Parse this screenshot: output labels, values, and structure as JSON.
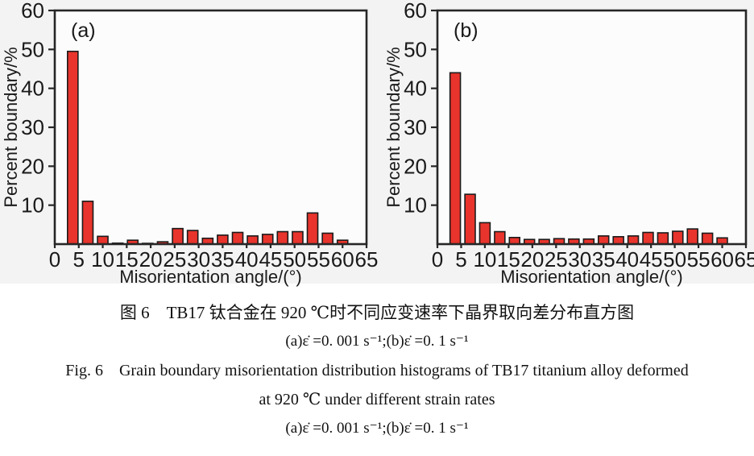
{
  "caption": {
    "zh_title": "图 6　TB17 钛合金在 920 ℃时不同应变速率下晶界取向差分布直方图",
    "zh_sub": "(a)ε̇ =0. 001 s⁻¹;(b)ε̇ =0. 1 s⁻¹",
    "en_line1": "Fig. 6　Grain boundary misorientation distribution histograms of TB17 titanium alloy deformed",
    "en_line2": "at 920 ℃ under different strain rates",
    "en_sub": "(a)ε̇ =0. 001 s⁻¹;(b)ε̇ =0. 1 s⁻¹"
  },
  "chart_data": [
    {
      "type": "bar",
      "panel_label": "(a)",
      "xlabel": "Misorientation angle/(°)",
      "ylabel": "Percent boundary/%",
      "xlim": [
        0,
        65
      ],
      "ylim": [
        0,
        60
      ],
      "x_ticks": [
        0,
        5,
        10,
        15,
        20,
        25,
        30,
        35,
        40,
        45,
        50,
        55,
        60,
        65
      ],
      "y_ticks": [
        10,
        20,
        30,
        40,
        50,
        60
      ],
      "grid": false,
      "legend": "none",
      "bin_width": 3.125,
      "x": [
        3.75,
        6.88,
        10.0,
        13.13,
        16.25,
        19.38,
        22.5,
        25.63,
        28.75,
        31.88,
        35.0,
        38.13,
        41.25,
        44.38,
        47.5,
        50.63,
        53.75,
        56.88,
        60.0
      ],
      "values": [
        49.5,
        11.0,
        2.0,
        0.25,
        1.0,
        0.2,
        0.6,
        4.0,
        3.5,
        1.5,
        2.3,
        3.0,
        2.1,
        2.5,
        3.2,
        3.2,
        8.0,
        2.8,
        1.0
      ],
      "bar_color": "#e8342c",
      "bar_edge_color": "#1b1b1b"
    },
    {
      "type": "bar",
      "panel_label": "(b)",
      "xlabel": "Misorientation angle/(°)",
      "ylabel": "Percent boundary/%",
      "xlim": [
        0,
        65
      ],
      "ylim": [
        0,
        60
      ],
      "x_ticks": [
        0,
        5,
        10,
        15,
        20,
        25,
        30,
        35,
        40,
        45,
        50,
        55,
        60,
        65
      ],
      "y_ticks": [
        10,
        20,
        30,
        40,
        50,
        60
      ],
      "grid": false,
      "legend": "none",
      "bin_width": 3.125,
      "x": [
        3.75,
        6.88,
        10.0,
        13.13,
        16.25,
        19.38,
        22.5,
        25.63,
        28.75,
        31.88,
        35.0,
        38.13,
        41.25,
        44.38,
        47.5,
        50.63,
        53.75,
        56.88,
        60.0
      ],
      "values": [
        44.0,
        12.8,
        5.5,
        3.2,
        1.7,
        1.2,
        1.2,
        1.4,
        1.3,
        1.3,
        2.1,
        1.9,
        2.1,
        3.0,
        2.9,
        3.3,
        3.9,
        2.8,
        1.6
      ],
      "bar_color": "#e8342c",
      "bar_edge_color": "#1b1b1b"
    }
  ]
}
